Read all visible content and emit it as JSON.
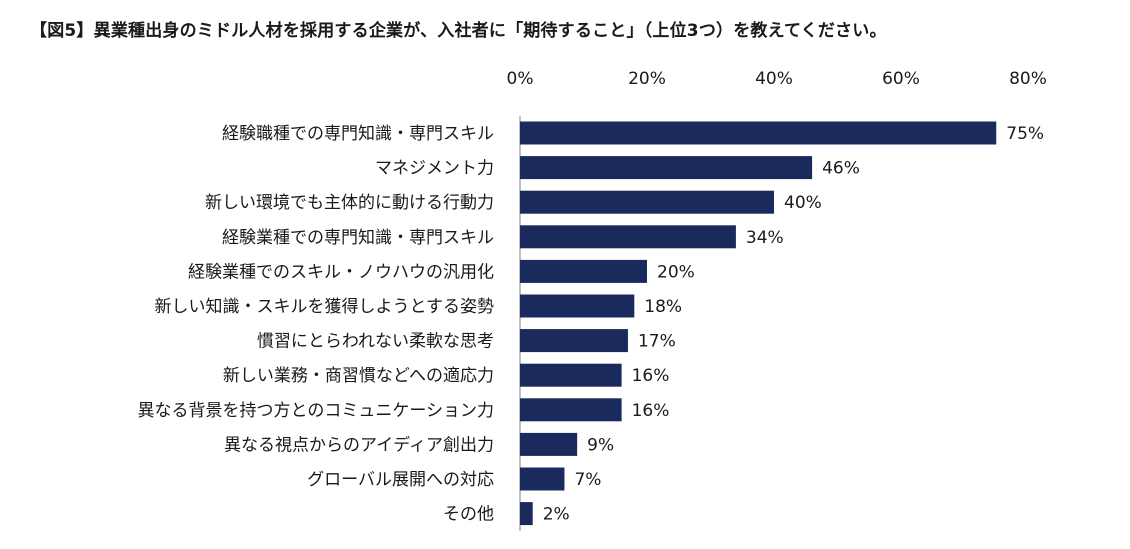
{
  "chart_data": {
    "type": "bar",
    "orientation": "horizontal",
    "title": "【図5】異業種出身のミドル人材を採用する企業が、入社者に「期待すること」（上位3つ）を教えてください。",
    "categories": [
      "経験職種での専門知識・専門スキル",
      "マネジメント力",
      "新しい環境でも主体的に動ける行動力",
      "経験業種での専門知識・専門スキル",
      "経験業種でのスキル・ノウハウの汎用化",
      "新しい知識・スキルを獲得しようとする姿勢",
      "慣習にとらわれない柔軟な思考",
      "新しい業務・商習慣などへの適応力",
      "異なる背景を持つ方とのコミュニケーション力",
      "異なる視点からのアイディア創出力",
      "グローバル展開への対応",
      "その他"
    ],
    "values": [
      75,
      46,
      40,
      34,
      20,
      18,
      17,
      16,
      16,
      9,
      7,
      2
    ],
    "value_labels": [
      "75%",
      "46%",
      "40%",
      "34%",
      "20%",
      "18%",
      "17%",
      "16%",
      "16%",
      "9%",
      "7%",
      "2%"
    ],
    "xticks": [
      0,
      20,
      40,
      60,
      80
    ],
    "xtick_labels": [
      "0%",
      "20%",
      "40%",
      "60%",
      "80%"
    ],
    "xlim": [
      0,
      80
    ],
    "x_axis_position": "top",
    "grid": false,
    "legend": "none",
    "bar_color": "#1b2a5c"
  }
}
